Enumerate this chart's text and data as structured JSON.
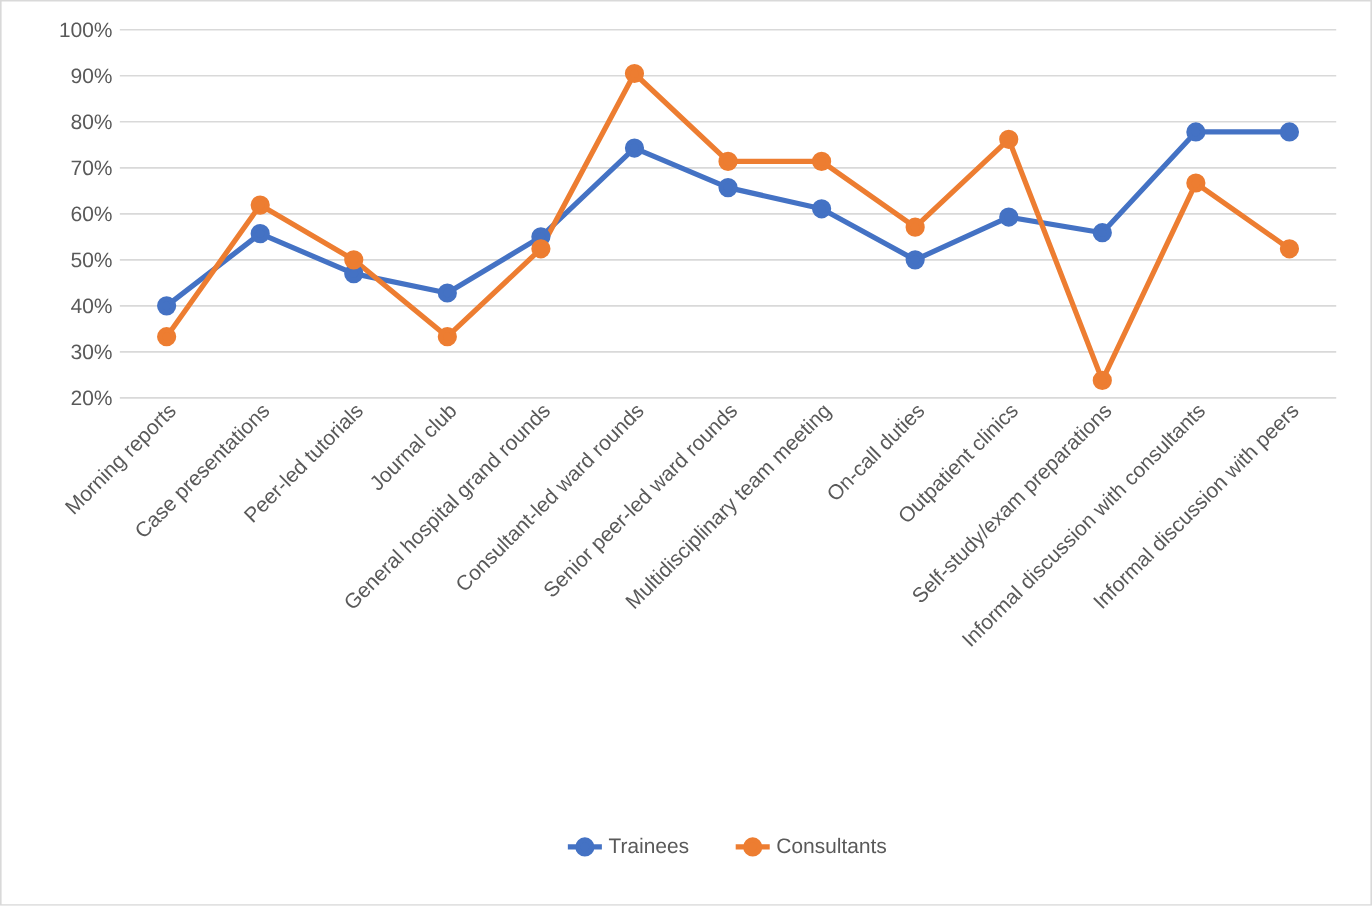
{
  "chart_data": {
    "type": "line",
    "categories": [
      "Morning reports",
      "Case presentations",
      "Peer-led tutorials",
      "Journal club",
      "General hospital grand rounds",
      "Consultant-led ward rounds",
      "Senior peer-led ward rounds",
      "Multidisciplinary team meeting",
      "On-call duties",
      "Outpatient clinics",
      "Self-study/exam preparations",
      "Informal discussion with consultants",
      "Informal discussion with peers"
    ],
    "series": [
      {
        "name": "Trainees",
        "color": "#4472c4",
        "values": [
          40.0,
          55.7,
          47.0,
          42.8,
          55.0,
          74.3,
          65.7,
          61.1,
          50.0,
          59.3,
          55.9,
          77.8,
          77.8
        ]
      },
      {
        "name": "Consultants",
        "color": "#ed7d31",
        "values": [
          33.3,
          61.9,
          50.0,
          33.3,
          52.4,
          90.5,
          71.4,
          71.4,
          57.1,
          76.2,
          23.8,
          66.7,
          52.4
        ]
      }
    ],
    "ylim": [
      20,
      100
    ],
    "yticks": [
      {
        "value": 20,
        "label": "20%"
      },
      {
        "value": 30,
        "label": "30%"
      },
      {
        "value": 40,
        "label": "40%"
      },
      {
        "value": 50,
        "label": "50%"
      },
      {
        "value": 60,
        "label": "60%"
      },
      {
        "value": 70,
        "label": "70%"
      },
      {
        "value": 80,
        "label": "80%"
      },
      {
        "value": 90,
        "label": "90%"
      },
      {
        "value": 100,
        "label": "100%"
      }
    ],
    "grid": "y",
    "legend": "bottom",
    "marker": "circle",
    "line_style": "solid"
  }
}
